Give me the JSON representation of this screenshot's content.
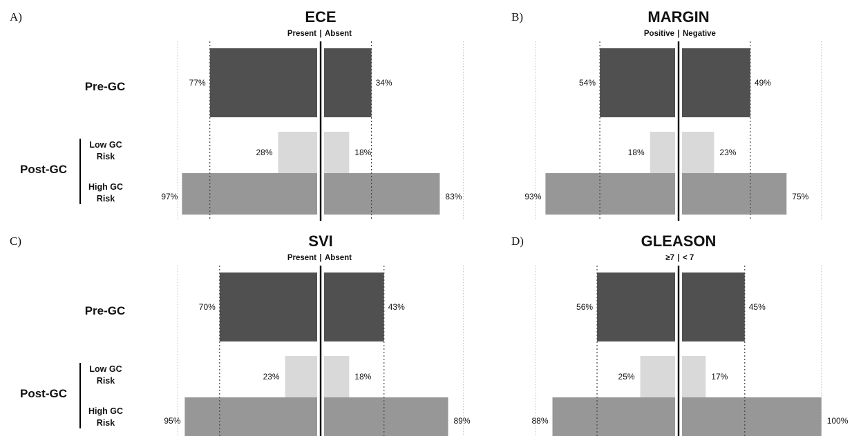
{
  "row_labels": {
    "pre_gc": "Pre-GC",
    "post_gc": "Post-GC",
    "low_gc_risk": [
      "Low GC",
      "Risk"
    ],
    "high_gc_risk": [
      "High GC",
      "Risk"
    ]
  },
  "colors": {
    "pre_gc": "#505050",
    "low_gc_risk": "#d9d9d9",
    "high_gc_risk": "#979797",
    "center_line": "#000000",
    "guide_line": "#444444",
    "frame_line": "#bbbbbb"
  },
  "chart_data": [
    {
      "type": "bar",
      "letter": "A)",
      "title": "ECE",
      "left_label": "Present",
      "right_label": "Absent",
      "xlim": [
        0,
        100
      ],
      "series": [
        {
          "name": "Pre-GC",
          "left": 77,
          "right": 34
        },
        {
          "name": "Low GC Risk",
          "left": 28,
          "right": 18
        },
        {
          "name": "High GC Risk",
          "left": 97,
          "right": 83
        }
      ],
      "value_labels": {
        "pre_left": "77%",
        "pre_right": "34%",
        "low_left": "28%",
        "low_right": "18%",
        "high_left": "97%",
        "high_right": "83%"
      }
    },
    {
      "type": "bar",
      "letter": "B)",
      "title": "MARGIN",
      "left_label": "Positive",
      "right_label": "Negative",
      "xlim": [
        0,
        100
      ],
      "series": [
        {
          "name": "Pre-GC",
          "left": 54,
          "right": 49
        },
        {
          "name": "Low GC Risk",
          "left": 18,
          "right": 23
        },
        {
          "name": "High GC Risk",
          "left": 93,
          "right": 75
        }
      ],
      "value_labels": {
        "pre_left": "54%",
        "pre_right": "49%",
        "low_left": "18%",
        "low_right": "23%",
        "high_left": "93%",
        "high_right": "75%"
      }
    },
    {
      "type": "bar",
      "letter": "C)",
      "title": "SVI",
      "left_label": "Present",
      "right_label": "Absent",
      "xlim": [
        0,
        100
      ],
      "series": [
        {
          "name": "Pre-GC",
          "left": 70,
          "right": 43
        },
        {
          "name": "Low GC Risk",
          "left": 23,
          "right": 18
        },
        {
          "name": "High GC Risk",
          "left": 95,
          "right": 89
        }
      ],
      "value_labels": {
        "pre_left": "70%",
        "pre_right": "43%",
        "low_left": "23%",
        "low_right": "18%",
        "high_left": "95%",
        "high_right": "89%"
      }
    },
    {
      "type": "bar",
      "letter": "D)",
      "title": "GLEASON",
      "left_label": "≥7",
      "right_label": "< 7",
      "xlim": [
        0,
        100
      ],
      "series": [
        {
          "name": "Pre-GC",
          "left": 56,
          "right": 45
        },
        {
          "name": "Low GC Risk",
          "left": 25,
          "right": 17
        },
        {
          "name": "High GC Risk",
          "left": 88,
          "right": 100
        }
      ],
      "value_labels": {
        "pre_left": "56%",
        "pre_right": "45%",
        "low_left": "25%",
        "low_right": "17%",
        "high_left": "88%",
        "high_right": "100%"
      }
    }
  ]
}
